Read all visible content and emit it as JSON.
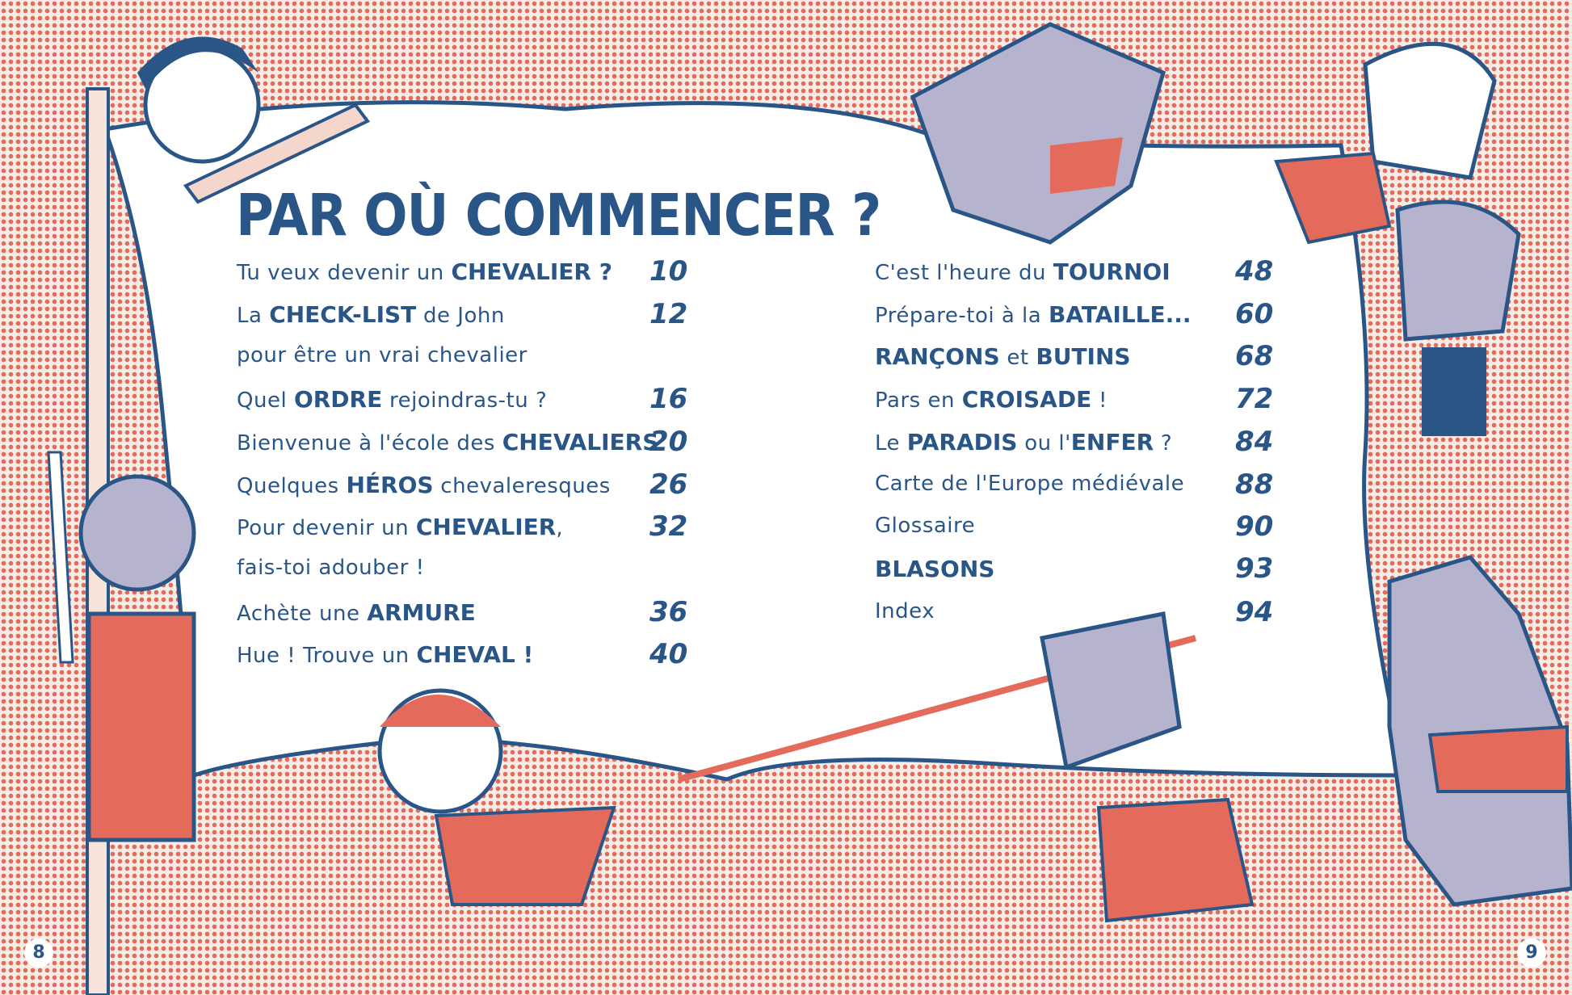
{
  "title": "PAR OÙ COMMENCER ?",
  "colors": {
    "ink": "#2a5687",
    "red": "#e46a5c",
    "paper": "#ffffff",
    "armor": "#b6b3cf"
  },
  "toc_left": [
    {
      "parts": [
        {
          "t": "Tu veux devenir un ",
          "b": false
        },
        {
          "t": "CHEVALIER ?",
          "b": true
        }
      ],
      "page": "10"
    },
    {
      "parts": [
        {
          "t": "La ",
          "b": false
        },
        {
          "t": "CHECK-LIST",
          "b": true
        },
        {
          "t": " de John",
          "b": false
        }
      ],
      "page": "12"
    },
    {
      "parts": [
        {
          "t": "pour être un vrai chevalier",
          "b": false
        }
      ],
      "page": ""
    },
    {
      "parts": [
        {
          "t": "Quel ",
          "b": false
        },
        {
          "t": "ORDRE",
          "b": true
        },
        {
          "t": " rejoindras-tu ?",
          "b": false
        }
      ],
      "page": "16"
    },
    {
      "parts": [
        {
          "t": "Bienvenue à l'école des ",
          "b": false
        },
        {
          "t": "CHEVALIERS",
          "b": true
        }
      ],
      "page": "20"
    },
    {
      "parts": [
        {
          "t": "Quelques ",
          "b": false
        },
        {
          "t": "HÉROS",
          "b": true
        },
        {
          "t": " chevaleresques",
          "b": false
        }
      ],
      "page": "26"
    },
    {
      "parts": [
        {
          "t": "Pour devenir un ",
          "b": false
        },
        {
          "t": "CHEVALIER",
          "b": true
        },
        {
          "t": ",",
          "b": false
        }
      ],
      "page": "32"
    },
    {
      "parts": [
        {
          "t": "fais-toi adouber !",
          "b": false
        }
      ],
      "page": ""
    },
    {
      "parts": [
        {
          "t": "Achète une ",
          "b": false
        },
        {
          "t": "ARMURE",
          "b": true
        }
      ],
      "page": "36"
    },
    {
      "parts": [
        {
          "t": "Hue ! Trouve un ",
          "b": false
        },
        {
          "t": "CHEVAL !",
          "b": true
        }
      ],
      "page": "40"
    }
  ],
  "toc_right": [
    {
      "parts": [
        {
          "t": "C'est l'heure du ",
          "b": false
        },
        {
          "t": "TOURNOI",
          "b": true
        }
      ],
      "page": "48"
    },
    {
      "parts": [
        {
          "t": "Prépare-toi à la ",
          "b": false
        },
        {
          "t": "BATAILLE...",
          "b": true
        }
      ],
      "page": "60"
    },
    {
      "parts": [
        {
          "t": "RANÇONS",
          "b": true
        },
        {
          "t": " et ",
          "b": false
        },
        {
          "t": "BUTINS",
          "b": true
        }
      ],
      "page": "68"
    },
    {
      "parts": [
        {
          "t": "Pars en ",
          "b": false
        },
        {
          "t": "CROISADE",
          "b": true
        },
        {
          "t": " !",
          "b": false
        }
      ],
      "page": "72"
    },
    {
      "parts": [
        {
          "t": "Le ",
          "b": false
        },
        {
          "t": "PARADIS",
          "b": true
        },
        {
          "t": " ou l'",
          "b": false
        },
        {
          "t": "ENFER",
          "b": true
        },
        {
          "t": " ?",
          "b": false
        }
      ],
      "page": "84"
    },
    {
      "parts": [
        {
          "t": "Carte de l'Europe médiévale",
          "b": false
        }
      ],
      "page": "88"
    },
    {
      "parts": [
        {
          "t": "Glossaire",
          "b": false
        }
      ],
      "page": "90"
    },
    {
      "parts": [
        {
          "t": "BLASONS",
          "b": true
        }
      ],
      "page": "93"
    },
    {
      "parts": [
        {
          "t": "Index",
          "b": false
        }
      ],
      "page": "94"
    }
  ],
  "folios": {
    "left": "8",
    "right": "9"
  }
}
